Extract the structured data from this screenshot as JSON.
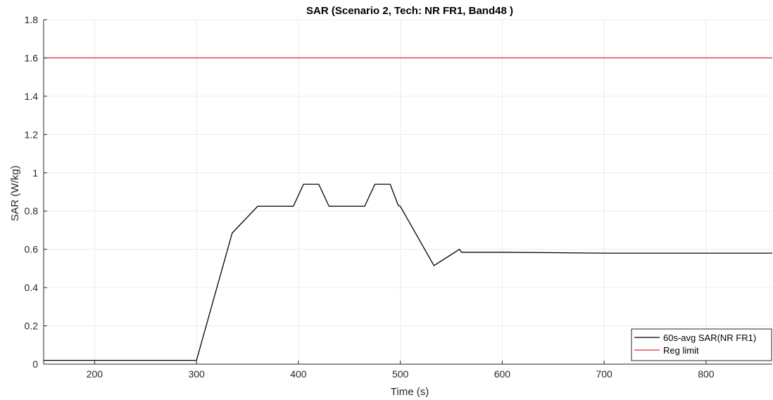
{
  "chart_data": {
    "type": "line",
    "title": "SAR (Scenario 2, Tech: NR FR1, Band48 )",
    "xlabel": "Time (s)",
    "ylabel": "SAR (W/kg)",
    "xlim": [
      150,
      865
    ],
    "ylim": [
      0,
      1.8
    ],
    "xticks": [
      200,
      300,
      400,
      500,
      600,
      700,
      800
    ],
    "yticks": [
      0,
      0.2,
      0.4,
      0.6,
      0.8,
      1,
      1.2,
      1.4,
      1.6,
      1.8
    ],
    "grid": true,
    "legend_position": "bottom-right",
    "series": [
      {
        "name": "60s-avg SAR(NR FR1)",
        "color": "#000000",
        "x": [
          150,
          300,
          335,
          360,
          395,
          405,
          420,
          430,
          465,
          475,
          490,
          498,
          500,
          533,
          558,
          560,
          600,
          700,
          865
        ],
        "y": [
          0.02,
          0.02,
          0.685,
          0.825,
          0.825,
          0.94,
          0.94,
          0.825,
          0.825,
          0.94,
          0.94,
          0.83,
          0.825,
          0.515,
          0.6,
          0.585,
          0.585,
          0.58,
          0.58
        ]
      },
      {
        "name": "Reg limit",
        "color": "#e0263d",
        "x": [
          150,
          865
        ],
        "y": [
          1.6,
          1.6
        ]
      }
    ]
  }
}
